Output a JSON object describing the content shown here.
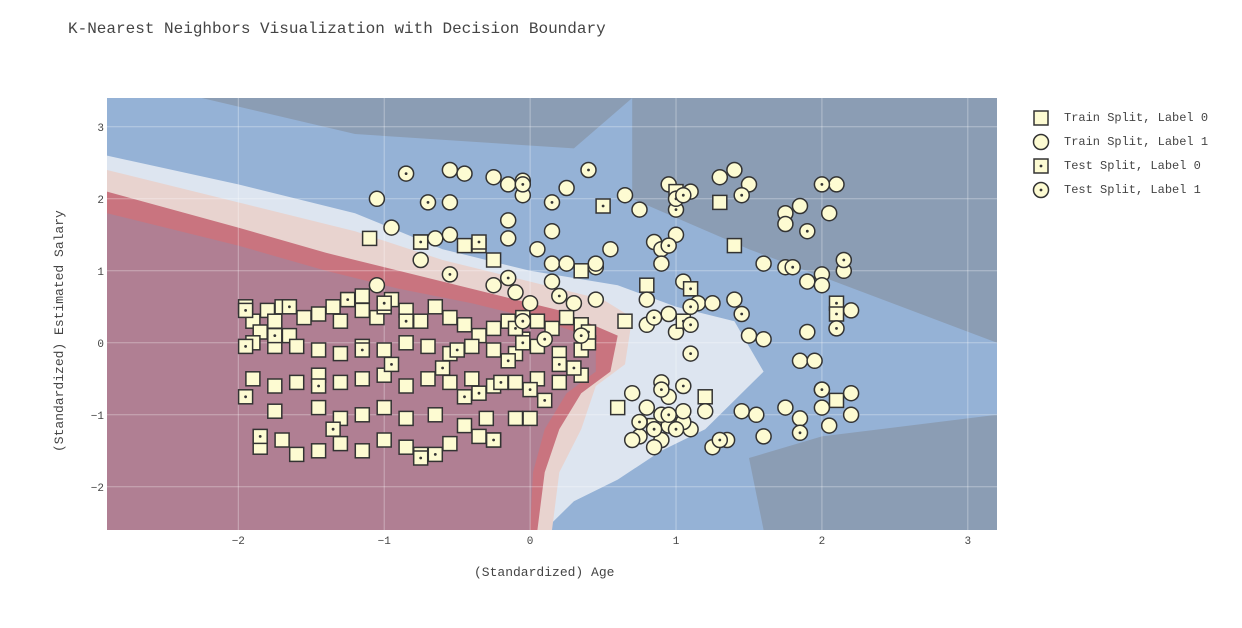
{
  "chart_data": {
    "type": "scatter",
    "title": "K-Nearest Neighbors Visualization with Decision Boundary",
    "xlabel": "(Standardized) Age",
    "ylabel": "(Standardized) Estimated Salary",
    "xlim": [
      -2.9,
      3.2
    ],
    "ylim": [
      -2.6,
      3.4
    ],
    "xticks": [
      -2,
      -1,
      0,
      1,
      2,
      3
    ],
    "yticks": [
      -2,
      -1,
      0,
      1,
      2,
      3
    ],
    "xtick_labels": [
      "−2",
      "−1",
      "0",
      "1",
      "2",
      "3"
    ],
    "ytick_labels": [
      "−2",
      "−1",
      "0",
      "1",
      "2",
      "3"
    ],
    "grid": true,
    "legend_position": "right",
    "colors": {
      "label0_region": "#b07f93",
      "label0_band": "#c9747f",
      "boundary_light": "#e8d3cf",
      "boundary_pale": "#dde5f0",
      "label1_region": "#95b2d6",
      "label1_dark": "#8b9db4",
      "marker_fill": "#fdfbd2",
      "marker_edge": "#333333"
    },
    "series": [
      {
        "name": "Train Split, Label 0",
        "marker": "square",
        "points": [
          [
            -1.95,
            0.5
          ],
          [
            -1.9,
            0.3
          ],
          [
            -1.8,
            0.45
          ],
          [
            -1.75,
            0.3
          ],
          [
            -1.7,
            0.5
          ],
          [
            -1.85,
            0.15
          ],
          [
            -1.65,
            0.1
          ],
          [
            -1.55,
            0.35
          ],
          [
            -1.45,
            0.4
          ],
          [
            -1.35,
            0.5
          ],
          [
            -1.3,
            0.3
          ],
          [
            -1.25,
            0.6
          ],
          [
            -1.15,
            0.45
          ],
          [
            -1.05,
            0.35
          ],
          [
            -1.0,
            0.5
          ],
          [
            -0.95,
            0.6
          ],
          [
            -0.85,
            0.45
          ],
          [
            -0.75,
            0.3
          ],
          [
            -0.65,
            0.5
          ],
          [
            -0.55,
            0.35
          ],
          [
            -0.45,
            0.25
          ],
          [
            -0.35,
            0.1
          ],
          [
            -0.25,
            0.2
          ],
          [
            -0.15,
            0.3
          ],
          [
            -0.05,
            0.35
          ],
          [
            0.05,
            0.3
          ],
          [
            0.15,
            0.2
          ],
          [
            0.25,
            0.35
          ],
          [
            0.35,
            0.25
          ],
          [
            -1.9,
            0.0
          ],
          [
            -1.75,
            -0.05
          ],
          [
            -1.6,
            -0.05
          ],
          [
            -1.45,
            -0.1
          ],
          [
            -1.3,
            -0.15
          ],
          [
            -1.15,
            -0.05
          ],
          [
            -1.0,
            -0.1
          ],
          [
            -0.85,
            0.0
          ],
          [
            -0.7,
            -0.05
          ],
          [
            -0.55,
            -0.15
          ],
          [
            -0.4,
            -0.05
          ],
          [
            -0.25,
            -0.1
          ],
          [
            -0.1,
            -0.15
          ],
          [
            0.05,
            -0.05
          ],
          [
            0.2,
            -0.15
          ],
          [
            0.35,
            -0.1
          ],
          [
            -1.9,
            -0.5
          ],
          [
            -1.75,
            -0.6
          ],
          [
            -1.6,
            -0.55
          ],
          [
            -1.45,
            -0.45
          ],
          [
            -1.3,
            -0.55
          ],
          [
            -1.15,
            -0.5
          ],
          [
            -1.0,
            -0.45
          ],
          [
            -0.85,
            -0.6
          ],
          [
            -0.7,
            -0.5
          ],
          [
            -0.55,
            -0.55
          ],
          [
            -0.4,
            -0.5
          ],
          [
            -0.25,
            -0.6
          ],
          [
            -0.1,
            -0.55
          ],
          [
            0.05,
            -0.5
          ],
          [
            0.2,
            -0.55
          ],
          [
            0.35,
            -0.45
          ],
          [
            -1.75,
            -0.95
          ],
          [
            -1.45,
            -0.9
          ],
          [
            -1.3,
            -1.05
          ],
          [
            -1.15,
            -1.0
          ],
          [
            -1.0,
            -0.9
          ],
          [
            -0.85,
            -1.05
          ],
          [
            -0.65,
            -1.0
          ],
          [
            -0.45,
            -1.15
          ],
          [
            -0.3,
            -1.05
          ],
          [
            -0.1,
            -1.05
          ],
          [
            0.0,
            -1.05
          ],
          [
            -1.85,
            -1.45
          ],
          [
            -1.7,
            -1.35
          ],
          [
            -1.6,
            -1.55
          ],
          [
            -1.45,
            -1.5
          ],
          [
            -1.3,
            -1.4
          ],
          [
            -1.15,
            -1.5
          ],
          [
            -1.0,
            -1.35
          ],
          [
            -0.85,
            -1.45
          ],
          [
            -0.75,
            -1.55
          ],
          [
            -0.55,
            -1.4
          ],
          [
            -0.35,
            -1.3
          ],
          [
            -0.25,
            -1.35
          ],
          [
            -1.1,
            1.45
          ],
          [
            -0.75,
            1.4
          ],
          [
            -0.45,
            1.35
          ],
          [
            -0.35,
            1.35
          ],
          [
            -0.25,
            1.15
          ],
          [
            0.35,
            1.0
          ],
          [
            0.65,
            0.3
          ],
          [
            0.8,
            0.8
          ],
          [
            0.6,
            -0.9
          ],
          [
            1.2,
            -0.75
          ],
          [
            1.4,
            1.35
          ],
          [
            1.3,
            1.95
          ],
          [
            2.1,
            -0.8
          ],
          [
            0.85,
            -1.15
          ],
          [
            -0.05,
            0.05
          ],
          [
            0.4,
            0.0
          ],
          [
            -1.15,
            0.65
          ]
        ]
      },
      {
        "name": "Train Split, Label 1",
        "marker": "circle",
        "points": [
          [
            -1.05,
            0.8
          ],
          [
            -1.05,
            2.0
          ],
          [
            -0.95,
            1.6
          ],
          [
            -0.75,
            1.15
          ],
          [
            -0.65,
            1.45
          ],
          [
            -0.55,
            1.5
          ],
          [
            -0.55,
            1.95
          ],
          [
            -0.55,
            2.4
          ],
          [
            -0.45,
            2.35
          ],
          [
            -0.25,
            2.3
          ],
          [
            -0.15,
            2.2
          ],
          [
            -0.05,
            2.25
          ],
          [
            -0.05,
            2.05
          ],
          [
            -0.15,
            1.7
          ],
          [
            -0.15,
            1.45
          ],
          [
            0.05,
            1.3
          ],
          [
            0.15,
            1.55
          ],
          [
            0.25,
            2.15
          ],
          [
            0.15,
            1.1
          ],
          [
            0.25,
            1.1
          ],
          [
            0.45,
            1.05
          ],
          [
            0.45,
            1.1
          ],
          [
            0.55,
            1.3
          ],
          [
            0.65,
            2.05
          ],
          [
            0.75,
            1.85
          ],
          [
            0.85,
            1.4
          ],
          [
            0.9,
            1.3
          ],
          [
            0.9,
            1.1
          ],
          [
            0.95,
            2.2
          ],
          [
            1.1,
            2.1
          ],
          [
            1.0,
            1.5
          ],
          [
            1.05,
            0.85
          ],
          [
            1.15,
            0.55
          ],
          [
            1.25,
            0.55
          ],
          [
            1.3,
            2.3
          ],
          [
            1.4,
            2.4
          ],
          [
            1.5,
            2.2
          ],
          [
            1.4,
            0.6
          ],
          [
            1.5,
            0.1
          ],
          [
            1.6,
            0.05
          ],
          [
            1.6,
            1.1
          ],
          [
            1.75,
            1.05
          ],
          [
            1.75,
            1.8
          ],
          [
            1.85,
            1.9
          ],
          [
            1.75,
            1.65
          ],
          [
            1.9,
            0.85
          ],
          [
            1.9,
            0.15
          ],
          [
            1.85,
            -0.25
          ],
          [
            1.95,
            -0.25
          ],
          [
            2.0,
            -0.9
          ],
          [
            2.0,
            -0.65
          ],
          [
            2.05,
            -1.15
          ],
          [
            2.0,
            0.95
          ],
          [
            2.0,
            0.8
          ],
          [
            2.05,
            1.8
          ],
          [
            2.1,
            2.2
          ],
          [
            2.15,
            1.0
          ],
          [
            2.2,
            0.45
          ],
          [
            2.2,
            -0.7
          ],
          [
            2.2,
            -1.0
          ],
          [
            1.85,
            -1.05
          ],
          [
            1.75,
            -0.9
          ],
          [
            1.55,
            -1.0
          ],
          [
            1.45,
            -0.95
          ],
          [
            1.6,
            -1.3
          ],
          [
            1.35,
            -1.35
          ],
          [
            1.25,
            -1.45
          ],
          [
            1.1,
            -1.2
          ],
          [
            1.05,
            -1.1
          ],
          [
            0.95,
            -1.15
          ],
          [
            0.9,
            -1.35
          ],
          [
            0.85,
            -1.45
          ],
          [
            0.75,
            -1.3
          ],
          [
            0.7,
            -1.35
          ],
          [
            0.7,
            -0.7
          ],
          [
            0.8,
            -0.9
          ],
          [
            0.9,
            -0.55
          ],
          [
            0.95,
            -0.75
          ],
          [
            1.05,
            -0.95
          ],
          [
            1.2,
            -0.95
          ],
          [
            0.9,
            -1.0
          ],
          [
            0.8,
            0.6
          ],
          [
            0.8,
            0.25
          ],
          [
            0.95,
            0.4
          ],
          [
            1.0,
            0.15
          ],
          [
            0.3,
            0.55
          ],
          [
            0.45,
            0.6
          ],
          [
            0.0,
            0.55
          ],
          [
            -0.25,
            0.8
          ],
          [
            -0.1,
            0.7
          ],
          [
            0.15,
            0.85
          ]
        ]
      },
      {
        "name": "Test Split, Label 0",
        "marker": "square-dot",
        "points": [
          [
            -1.95,
            0.45
          ],
          [
            -1.95,
            -0.05
          ],
          [
            -1.95,
            -0.75
          ],
          [
            -1.85,
            -1.3
          ],
          [
            -1.75,
            0.1
          ],
          [
            -1.65,
            0.5
          ],
          [
            -1.45,
            -0.6
          ],
          [
            -1.35,
            -1.2
          ],
          [
            -1.25,
            0.6
          ],
          [
            -1.15,
            -0.1
          ],
          [
            -1.0,
            0.55
          ],
          [
            -0.95,
            -0.3
          ],
          [
            -0.85,
            0.3
          ],
          [
            -0.75,
            -1.6
          ],
          [
            -0.65,
            -1.55
          ],
          [
            -0.6,
            -0.35
          ],
          [
            -0.5,
            -0.1
          ],
          [
            -0.45,
            -0.75
          ],
          [
            -0.35,
            -0.7
          ],
          [
            -0.25,
            -1.35
          ],
          [
            -0.2,
            -0.55
          ],
          [
            -0.15,
            -0.25
          ],
          [
            -0.05,
            0.0
          ],
          [
            0.0,
            -0.65
          ],
          [
            0.1,
            -0.8
          ],
          [
            0.2,
            -0.3
          ],
          [
            0.3,
            -0.35
          ],
          [
            0.4,
            0.15
          ],
          [
            0.5,
            1.9
          ],
          [
            1.0,
            2.1
          ],
          [
            1.05,
            0.3
          ],
          [
            1.1,
            0.75
          ],
          [
            2.1,
            0.55
          ],
          [
            2.1,
            0.4
          ],
          [
            -0.75,
            1.4
          ],
          [
            -0.35,
            1.4
          ],
          [
            -0.1,
            0.2
          ]
        ]
      },
      {
        "name": "Test Split, Label 1",
        "marker": "circle-dot",
        "points": [
          [
            -0.85,
            2.35
          ],
          [
            -0.7,
            1.95
          ],
          [
            -0.55,
            0.95
          ],
          [
            -0.15,
            0.9
          ],
          [
            -0.05,
            2.2
          ],
          [
            0.15,
            1.95
          ],
          [
            0.4,
            2.4
          ],
          [
            0.95,
            1.35
          ],
          [
            1.0,
            1.85
          ],
          [
            1.0,
            2.0
          ],
          [
            1.05,
            2.05
          ],
          [
            1.1,
            0.5
          ],
          [
            1.1,
            0.25
          ],
          [
            1.1,
            -0.15
          ],
          [
            0.9,
            -0.65
          ],
          [
            0.95,
            -1.0
          ],
          [
            0.85,
            -1.2
          ],
          [
            0.75,
            -1.1
          ],
          [
            1.0,
            -1.2
          ],
          [
            1.45,
            2.05
          ],
          [
            1.45,
            0.4
          ],
          [
            1.8,
            1.05
          ],
          [
            1.9,
            1.55
          ],
          [
            2.0,
            2.2
          ],
          [
            2.1,
            0.2
          ],
          [
            2.15,
            1.15
          ],
          [
            2.0,
            -0.65
          ],
          [
            1.85,
            -1.25
          ],
          [
            1.3,
            -1.35
          ],
          [
            0.85,
            0.35
          ],
          [
            0.1,
            0.05
          ],
          [
            0.35,
            0.1
          ],
          [
            1.05,
            -0.6
          ],
          [
            0.2,
            0.65
          ],
          [
            -0.05,
            0.3
          ]
        ]
      }
    ]
  }
}
